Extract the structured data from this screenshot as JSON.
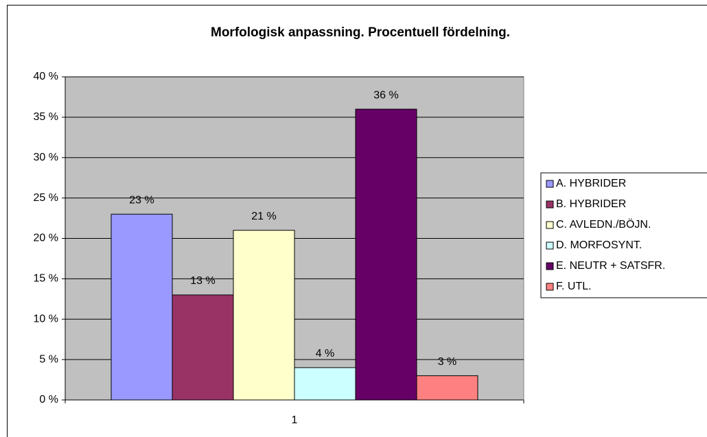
{
  "chart_data": {
    "type": "bar",
    "title": "Morfologisk anpassning. Procentuell fördelning.",
    "categories": [
      "1"
    ],
    "series": [
      {
        "name": "A. HYBRIDER",
        "color": "#9999ff",
        "values": [
          23
        ],
        "value_labels": [
          "23 %"
        ]
      },
      {
        "name": "B. HYBRIDER",
        "color": "#993366",
        "values": [
          13
        ],
        "value_labels": [
          "13 %"
        ]
      },
      {
        "name": "C. AVLEDN./BÖJN.",
        "color": "#ffffcc",
        "values": [
          21
        ],
        "value_labels": [
          "21 %"
        ]
      },
      {
        "name": "D. MORFOSYNT.",
        "color": "#ccffff",
        "values": [
          4
        ],
        "value_labels": [
          "4 %"
        ]
      },
      {
        "name": "E. NEUTR + SATSFR.",
        "color": "#660066",
        "values": [
          36
        ],
        "value_labels": [
          "36 %"
        ]
      },
      {
        "name": "F. UTL.",
        "color": "#ff8080",
        "values": [
          3
        ],
        "value_labels": [
          "3 %"
        ]
      }
    ],
    "ylim": [
      0,
      40
    ],
    "yticks": [
      {
        "value": 0,
        "label": "0 %"
      },
      {
        "value": 5,
        "label": "5 %"
      },
      {
        "value": 10,
        "label": "10 %"
      },
      {
        "value": 15,
        "label": "15 %"
      },
      {
        "value": 20,
        "label": "20 %"
      },
      {
        "value": 25,
        "label": "25 %"
      },
      {
        "value": 30,
        "label": "30 %"
      },
      {
        "value": 35,
        "label": "35 %"
      },
      {
        "value": 40,
        "label": "40 %"
      }
    ],
    "grid": true,
    "legend": "right",
    "plot_background": "#c0c0c0"
  }
}
